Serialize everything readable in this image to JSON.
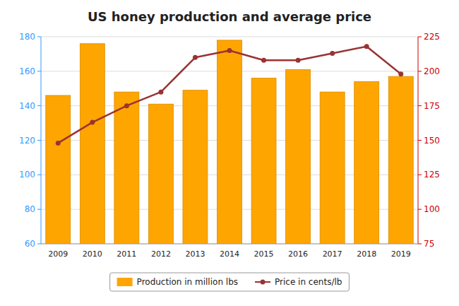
{
  "chart_data": {
    "type": "bar",
    "title": "US honey production and average price",
    "categories": [
      "2009",
      "2010",
      "2011",
      "2012",
      "2013",
      "2014",
      "2015",
      "2016",
      "2017",
      "2018",
      "2019"
    ],
    "series": [
      {
        "name": "Production in million lbs",
        "type": "bar",
        "color": "#FFA500",
        "values": [
          146,
          176,
          148,
          141,
          149,
          178,
          156,
          161,
          148,
          154,
          157
        ]
      },
      {
        "name": "Price in cents/lb",
        "type": "line",
        "color": "#993333",
        "marker": "circle",
        "axis": "y2",
        "values": [
          148,
          163,
          175,
          185,
          210,
          215,
          208,
          208,
          213,
          218,
          198
        ]
      }
    ],
    "ylim": [
      60,
      180
    ],
    "yticks": [
      60,
      80,
      100,
      120,
      140,
      160,
      180
    ],
    "y2lim": [
      75,
      225
    ],
    "y2ticks": [
      75,
      100,
      125,
      150,
      175,
      200,
      225
    ],
    "grid": true,
    "legend": "bottom"
  }
}
